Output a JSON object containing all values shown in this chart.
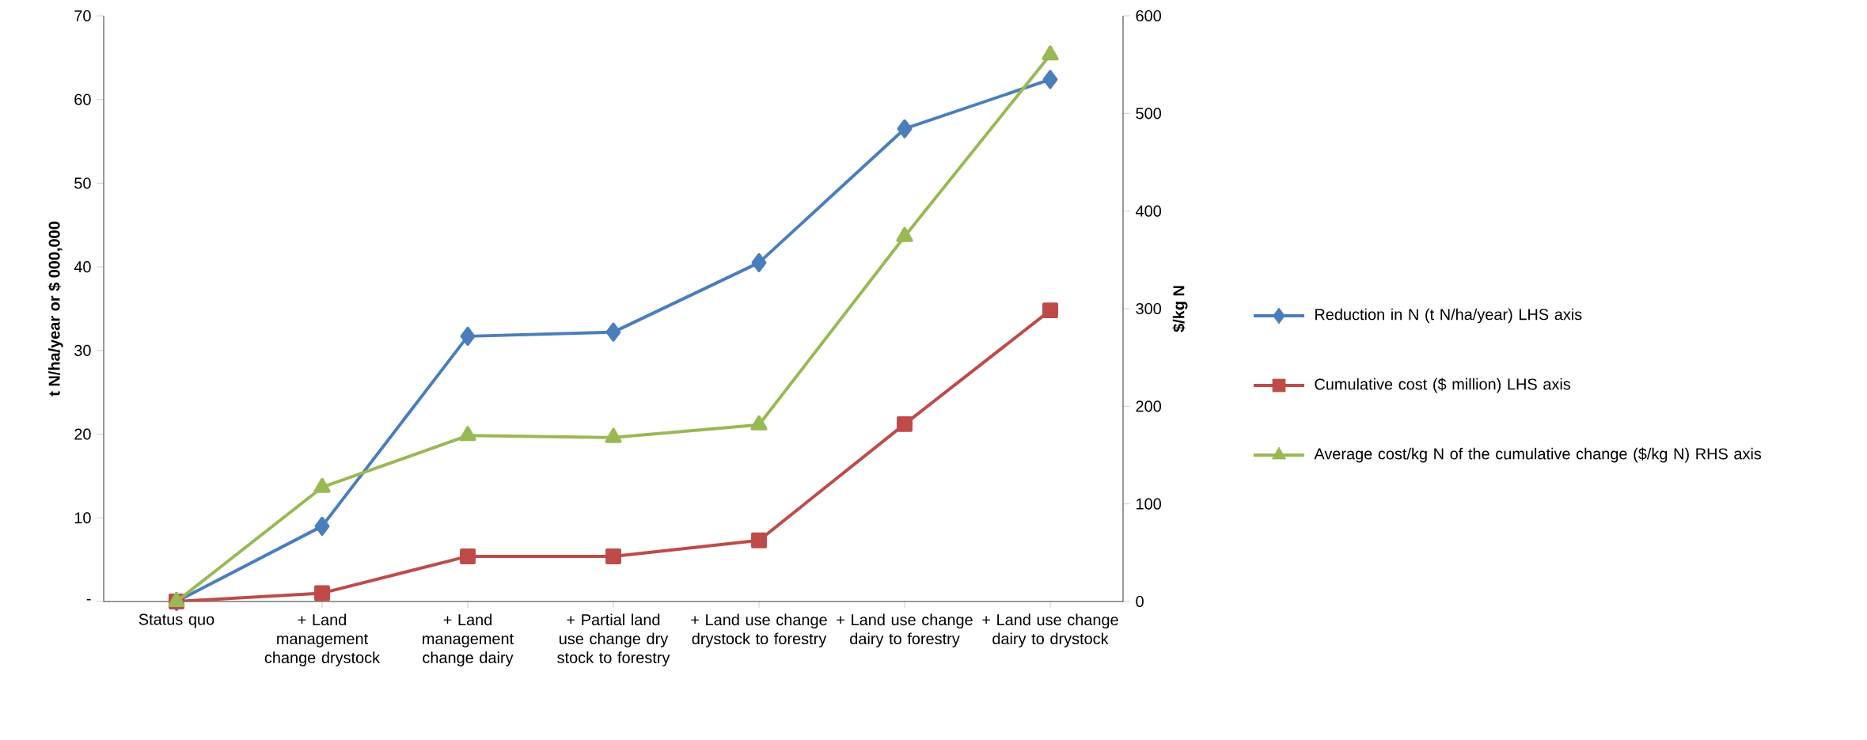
{
  "chart_data": {
    "type": "line",
    "categories": [
      "Status quo",
      "+ Land management change drystock",
      "+ Land management change dairy",
      "+ Partial land use change dry stock to forestry",
      "+ Land use change drystock to forestry",
      "+ Land use change dairy to forestry",
      "+ Land use change dairy to drystock"
    ],
    "series": [
      {
        "name": "Reduction in N (t N/ha/year) LHS axis",
        "color": "#4a7ebb",
        "marker": "diamond",
        "values": [
          0,
          9.0,
          31.7,
          32.2,
          40.5,
          56.5,
          62.4
        ]
      },
      {
        "name": "Cumulative cost ($ million) LHS axis",
        "color": "#be4b48",
        "marker": "square",
        "values": [
          0,
          1.0,
          5.4,
          5.4,
          7.3,
          21.2,
          34.8
        ]
      },
      {
        "name": "Average cost/kg N of the cumulative change ($/kg N) RHS axis",
        "color": "#98b954",
        "marker": "triangle",
        "axis": "y2",
        "values": [
          0,
          117,
          170,
          168,
          181,
          374,
          560
        ]
      }
    ],
    "ylabel": "t N/ha/year or $ 000,000",
    "y2label": "$/kg N",
    "ylim": [
      0,
      70
    ],
    "yticks": [
      {
        "value": 0,
        "label": "-"
      },
      10,
      20,
      30,
      40,
      50,
      60,
      70
    ],
    "y2lim": [
      0,
      600
    ],
    "y2ticks": [
      0,
      100,
      200,
      300,
      400,
      500,
      600
    ],
    "legend": "right"
  }
}
